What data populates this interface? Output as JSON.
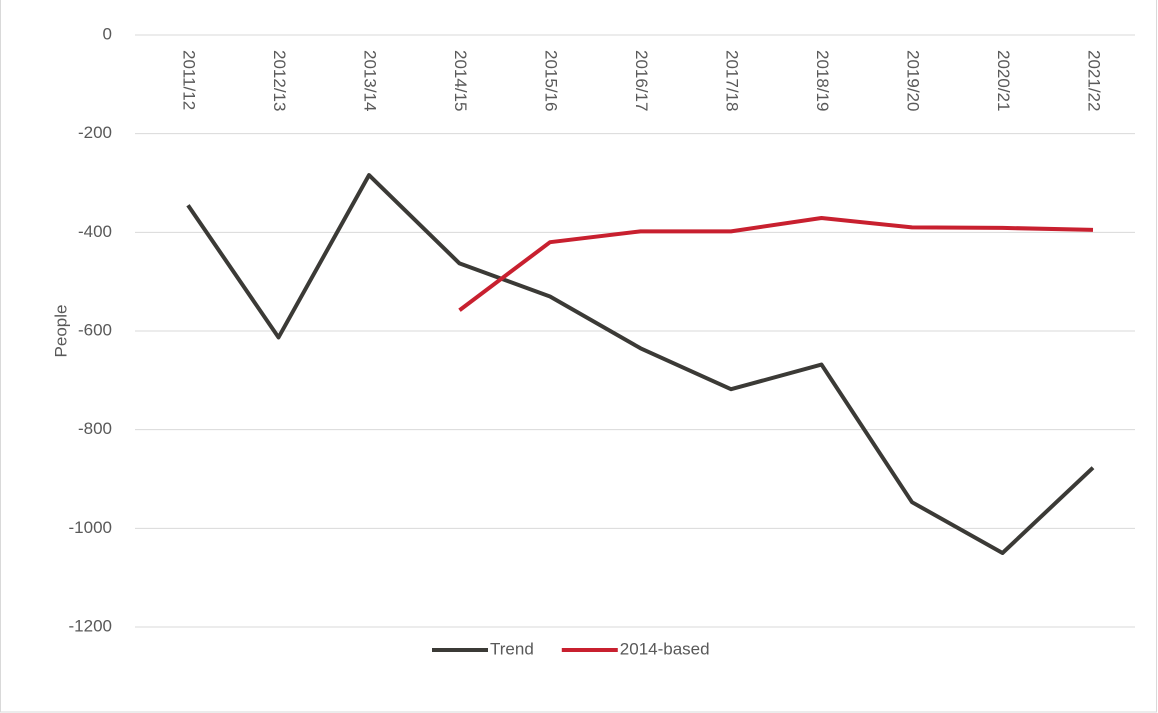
{
  "chart_data": {
    "type": "line",
    "categories": [
      "2011/12",
      "2012/13",
      "2013/14",
      "2014/15",
      "2015/16",
      "2016/17",
      "2017/18",
      "2018/19",
      "2019/20",
      "2020/21",
      "2021/22"
    ],
    "series": [
      {
        "name": "Trend",
        "color": "#3b3a36",
        "values": [
          -345,
          -613,
          -284,
          -463,
          -530,
          -635,
          -718,
          -668,
          -947,
          -1050,
          -877
        ]
      },
      {
        "name": "2014-based",
        "color": "#c8202f",
        "values": [
          null,
          null,
          null,
          -558,
          -420,
          -398,
          -398,
          -371,
          -390,
          -391,
          -395
        ]
      }
    ],
    "y_label": "People",
    "ylim": [
      -1200,
      0
    ],
    "yticks": [
      0,
      -200,
      -400,
      -600,
      -800,
      -1000,
      -1200
    ],
    "grid": true,
    "legend": "bottom"
  }
}
